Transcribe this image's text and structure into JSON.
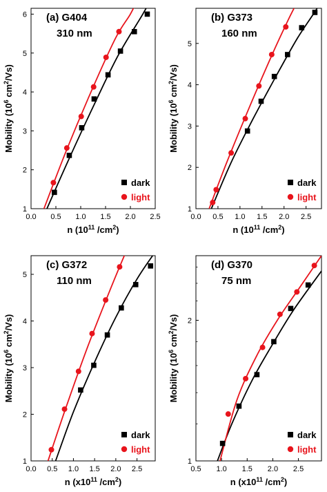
{
  "figure": {
    "colors": {
      "dark": "#000000",
      "light": "#e8141c"
    },
    "legend_position": "bottom-right"
  },
  "chart_data": [
    {
      "type": "scatter",
      "panel_label": "(a) G404",
      "thickness": "310 nm",
      "xlabel_prefix": "n (10",
      "xlabel_exp": "11",
      "xlabel_suffix": " /cm",
      "xlabel_sup2": "2",
      "xlabel_close": ")",
      "ylabel": "Mobility (10",
      "ylabel_exp": "6",
      "ylabel_unit": " cm",
      "ylabel_sup2": "2",
      "ylabel_close": "/Vs)",
      "x_range": [
        0.0,
        2.5
      ],
      "y_range": [
        1,
        6.15
      ],
      "y_scale": "linear",
      "x_ticks": [
        "0.0",
        "0.5",
        "1.0",
        "1.5",
        "2.0",
        "2.5"
      ],
      "y_ticks": [
        "1",
        "2",
        "3",
        "4",
        "5",
        "6"
      ],
      "legend": [
        "dark",
        "light"
      ],
      "series": [
        {
          "name": "dark",
          "marker": "square",
          "x": [
            0.47,
            0.77,
            1.02,
            1.27,
            1.55,
            1.8,
            2.08,
            2.34
          ],
          "y": [
            1.42,
            2.37,
            3.08,
            3.82,
            4.44,
            5.05,
            5.55,
            6.0
          ]
        },
        {
          "name": "light",
          "marker": "circle",
          "x": [
            0.45,
            0.72,
            1.01,
            1.26,
            1.51,
            1.77
          ],
          "y": [
            1.67,
            2.56,
            3.37,
            4.13,
            4.89,
            5.55
          ]
        }
      ],
      "fits": [
        {
          "series": "dark",
          "x": [
            0.32,
            0.75,
            1.25,
            1.75,
            2.25,
            2.42
          ],
          "y": [
            1.0,
            2.24,
            3.62,
            4.93,
            6.0,
            6.4
          ]
        },
        {
          "series": "light",
          "x": [
            0.26,
            0.7,
            1.2,
            1.7,
            2.0,
            2.15
          ],
          "y": [
            1.0,
            2.46,
            3.98,
            5.38,
            6.0,
            6.4
          ]
        }
      ]
    },
    {
      "type": "scatter",
      "panel_label": "(b) G373",
      "thickness": "160 nm",
      "xlabel_prefix": "n (10",
      "xlabel_exp": "11",
      "xlabel_suffix": " /cm",
      "xlabel_sup2": "2",
      "xlabel_close": ")",
      "ylabel": "Mobility (10",
      "ylabel_exp": "6",
      "ylabel_unit": " cm",
      "ylabel_sup2": "2",
      "ylabel_close": "/Vs)",
      "x_range": [
        0.0,
        2.85
      ],
      "y_range": [
        1,
        5.85
      ],
      "y_scale": "linear",
      "x_ticks": [
        "0.0",
        "0.5",
        "1.0",
        "1.5",
        "2.0",
        "2.5"
      ],
      "y_ticks": [
        "1",
        "2",
        "3",
        "4",
        "5"
      ],
      "legend": [
        "dark",
        "light"
      ],
      "series": [
        {
          "name": "dark",
          "marker": "square",
          "x": [
            1.17,
            1.48,
            1.78,
            2.08,
            2.4,
            2.7
          ],
          "y": [
            2.88,
            3.6,
            4.2,
            4.73,
            5.38,
            5.75
          ]
        },
        {
          "name": "light",
          "marker": "circle",
          "x": [
            0.38,
            0.46,
            0.8,
            1.12,
            1.43,
            1.72,
            2.04
          ],
          "y": [
            1.15,
            1.46,
            2.35,
            3.18,
            3.97,
            4.73,
            5.4
          ]
        }
      ],
      "fits": [
        {
          "series": "dark",
          "x": [
            0.35,
            0.8,
            1.3,
            1.8,
            2.3,
            2.75,
            2.9
          ],
          "y": [
            1.0,
            2.12,
            3.18,
            4.17,
            5.12,
            5.85,
            6.2
          ]
        },
        {
          "series": "light",
          "x": [
            0.3,
            0.7,
            1.2,
            1.7,
            2.1,
            2.35
          ],
          "y": [
            1.0,
            2.12,
            3.42,
            4.66,
            5.58,
            6.1
          ]
        }
      ]
    },
    {
      "type": "scatter",
      "panel_label": "(c) G372",
      "thickness": "110 nm",
      "xlabel_prefix": "n (x10",
      "xlabel_exp": "11",
      "xlabel_suffix": " /cm",
      "xlabel_sup2": "2",
      "xlabel_close": ")",
      "ylabel": "Mobility (10",
      "ylabel_exp": "6",
      "ylabel_unit": " cm",
      "ylabel_sup2": "2",
      "ylabel_close": "/Vs)",
      "x_range": [
        0.0,
        2.93
      ],
      "y_range": [
        1,
        5.4
      ],
      "y_scale": "linear",
      "x_ticks": [
        "0.0",
        "0.5",
        "1.0",
        "1.5",
        "2.0",
        "2.5"
      ],
      "y_ticks": [
        "1",
        "2",
        "3",
        "4",
        "5"
      ],
      "legend": [
        "dark",
        "light"
      ],
      "series": [
        {
          "name": "dark",
          "marker": "square",
          "x": [
            1.17,
            1.48,
            1.8,
            2.13,
            2.47,
            2.82
          ],
          "y": [
            2.52,
            3.05,
            3.7,
            4.28,
            4.78,
            5.18
          ]
        },
        {
          "name": "light",
          "marker": "circle",
          "x": [
            0.48,
            0.79,
            1.12,
            1.44,
            1.76,
            2.09
          ],
          "y": [
            1.24,
            2.11,
            2.92,
            3.73,
            4.45,
            5.16
          ]
        }
      ],
      "fits": [
        {
          "series": "dark",
          "x": [
            0.58,
            1.0,
            1.5,
            2.0,
            2.5,
            2.93
          ],
          "y": [
            1.0,
            2.05,
            3.12,
            4.08,
            4.9,
            5.48
          ]
        },
        {
          "series": "light",
          "x": [
            0.4,
            0.8,
            1.3,
            1.8,
            2.2,
            2.4
          ],
          "y": [
            1.0,
            2.08,
            3.36,
            4.52,
            5.4,
            5.8
          ]
        }
      ]
    },
    {
      "type": "scatter",
      "panel_label": "(d) G370",
      "thickness": "75 nm",
      "xlabel_prefix": "n (x10",
      "xlabel_exp": "11",
      "xlabel_suffix": " /cm",
      "xlabel_sup2": "2",
      "xlabel_close": ")",
      "ylabel": "Mobility (10",
      "ylabel_exp": "6",
      "ylabel_unit": " cm",
      "ylabel_sup2": "2",
      "ylabel_close": "/Vs)",
      "x_range": [
        0.5,
        2.95
      ],
      "y_range": [
        1,
        2.75
      ],
      "y_scale": "log",
      "x_ticks": [
        "0.5",
        "1.0",
        "1.5",
        "2.0",
        "2.5"
      ],
      "y_ticks": [
        "1",
        "2"
      ],
      "legend": [
        "dark",
        "light"
      ],
      "series": [
        {
          "name": "dark",
          "marker": "square",
          "x": [
            1.02,
            1.34,
            1.69,
            2.02,
            2.35,
            2.69
          ],
          "y": [
            1.09,
            1.31,
            1.53,
            1.8,
            2.12,
            2.38
          ]
        },
        {
          "name": "light",
          "marker": "circle",
          "x": [
            1.13,
            1.47,
            1.8,
            2.14,
            2.47,
            2.81
          ],
          "y": [
            1.26,
            1.5,
            1.75,
            2.06,
            2.3,
            2.62
          ]
        }
      ],
      "fits": [
        {
          "series": "dark",
          "x": [
            0.92,
            1.2,
            1.6,
            2.0,
            2.4,
            2.95
          ],
          "y": [
            1.0,
            1.2,
            1.49,
            1.78,
            2.1,
            2.55
          ]
        },
        {
          "series": "light",
          "x": [
            0.97,
            1.3,
            1.7,
            2.1,
            2.5,
            2.95
          ],
          "y": [
            1.0,
            1.35,
            1.69,
            2.01,
            2.33,
            2.75
          ]
        }
      ]
    }
  ]
}
